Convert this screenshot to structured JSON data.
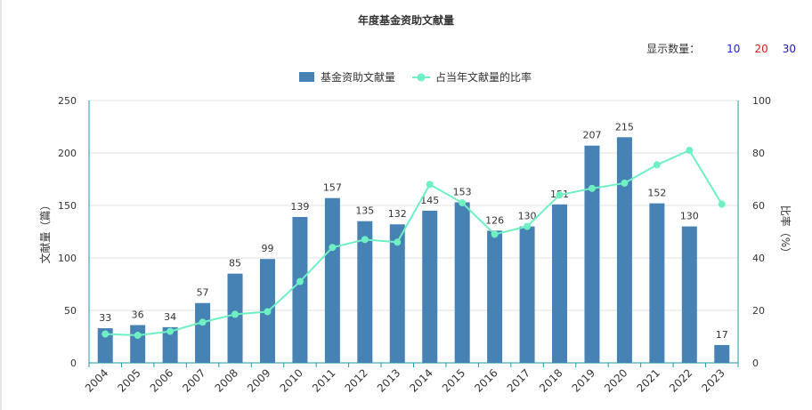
{
  "title": "年度基金资助文献量",
  "display_count": {
    "label": "显示数量：",
    "options": [
      {
        "value": "10",
        "color": "#1a1aff"
      },
      {
        "value": "20",
        "color": "#e01b1b"
      },
      {
        "value": "30",
        "color": "#1a1aa8"
      }
    ]
  },
  "colors": {
    "bar": "#4682b4",
    "line": "#6ff0c2",
    "axis": "#1b9aaa",
    "grid": "#e0e0e0"
  },
  "chart_data": {
    "type": "bar",
    "title": "年度基金资助文献量",
    "categories": [
      "2004",
      "2005",
      "2006",
      "2007",
      "2008",
      "2009",
      "2010",
      "2011",
      "2012",
      "2013",
      "2014",
      "2015",
      "2016",
      "2017",
      "2018",
      "2019",
      "2020",
      "2021",
      "2022",
      "2023"
    ],
    "series": [
      {
        "name": "基金资助文献量",
        "type": "bar",
        "axis": "left",
        "values": [
          33,
          36,
          34,
          57,
          85,
          99,
          139,
          157,
          135,
          132,
          145,
          153,
          126,
          130,
          151,
          207,
          215,
          152,
          130,
          17
        ]
      },
      {
        "name": "占当年文献量的比率",
        "type": "line",
        "axis": "right",
        "values": [
          11,
          10.5,
          12,
          15.5,
          18.5,
          19.5,
          31,
          44,
          47,
          46,
          68,
          61,
          49,
          52,
          64,
          66.5,
          68.5,
          75.5,
          81,
          60.5
        ]
      }
    ],
    "ylabel": "文献量（篇）",
    "y2label": "比率（%）",
    "ylim": [
      0,
      250
    ],
    "y2lim": [
      0,
      100
    ],
    "yticks": [
      0,
      50,
      100,
      150,
      200,
      250
    ],
    "y2ticks": [
      0,
      20,
      40,
      60,
      80,
      100
    ],
    "grid": true,
    "legend": "top-center"
  }
}
